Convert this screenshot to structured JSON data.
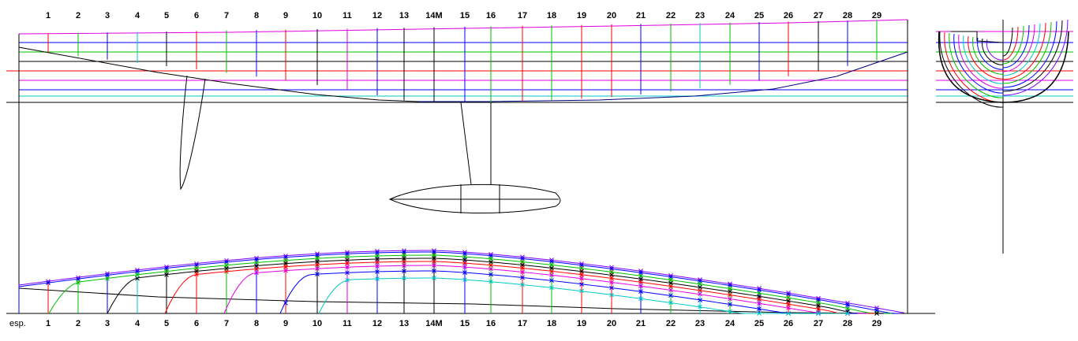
{
  "station_labels": [
    "1",
    "2",
    "3",
    "4",
    "5",
    "6",
    "7",
    "8",
    "9",
    "10",
    "11",
    "12",
    "13",
    "14M",
    "15",
    "16",
    "17",
    "18",
    "19",
    "20",
    "21",
    "22",
    "23",
    "24",
    "25",
    "26",
    "27",
    "28",
    "29"
  ],
  "bottom_left_label": "esp.",
  "colors": {
    "black": "#000000",
    "red": "#ff0000",
    "green": "#00c000",
    "blue": "#0000ff",
    "cyan": "#00c8c8",
    "magenta": "#e000e0",
    "purple": "#8000ff",
    "navy": "#000080"
  }
}
